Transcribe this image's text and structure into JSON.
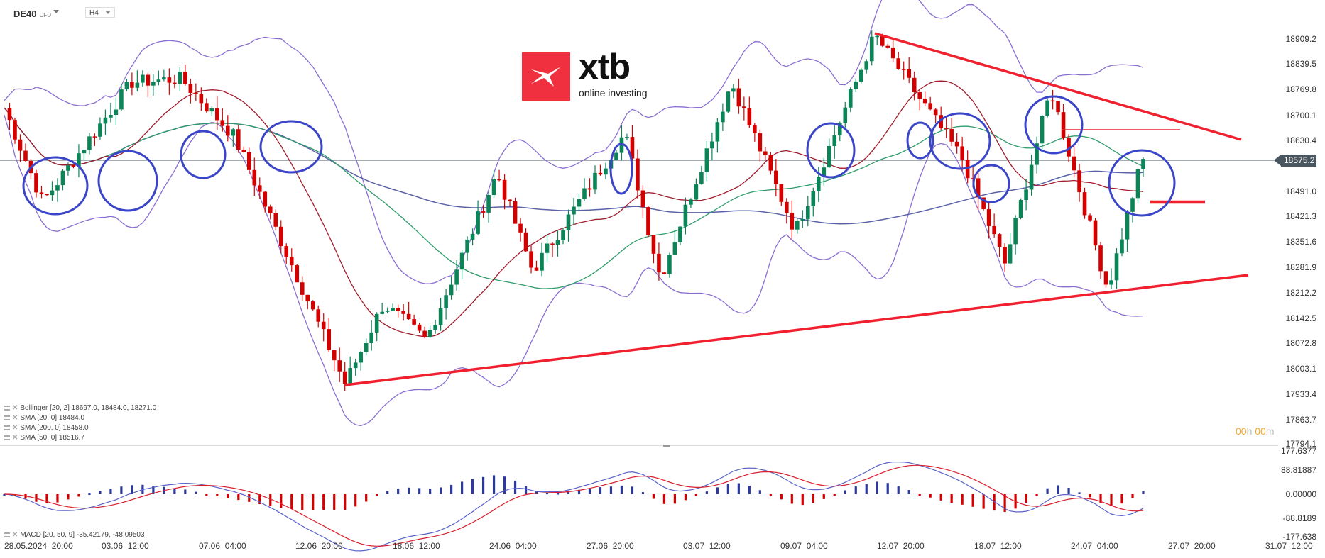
{
  "header": {
    "symbol": "DE40",
    "instrument_type": "CFD",
    "timeframe": "H4"
  },
  "logo": {
    "brand": "xtb",
    "tagline": "online investing",
    "brand_color": "#f0303f"
  },
  "price_axis": {
    "labels": [
      "18909.2",
      "18839.5",
      "18769.8",
      "18700.1",
      "18630.4",
      "18491.0",
      "18421.3",
      "18351.6",
      "18281.9",
      "18212.2",
      "18142.5",
      "18072.8",
      "18003.1",
      "17933.4",
      "17863.7",
      "17794.1"
    ],
    "current_price": "18575.2"
  },
  "macd_axis": {
    "labels": [
      "177.6377",
      "88.81887",
      "0.00000",
      "-88.8189",
      "-177.638"
    ]
  },
  "time_axis": {
    "labels": [
      "28.05.2024  20:00",
      "03.06  12:00",
      "07.06  04:00",
      "12.06  20:00",
      "18.06  12:00",
      "24.06  04:00",
      "27.06  20:00",
      "03.07  12:00",
      "09.07  04:00",
      "12.07  20:00",
      "18.07  12:00",
      "24.07  04:00",
      "27.07  20:00",
      "31.07  12:00"
    ]
  },
  "indicators": {
    "items": [
      {
        "label": "Bollinger  [20, 2] 18697.0,  18484.0,  18271.0"
      },
      {
        "label": "SMA [20, 0] 18484.0"
      },
      {
        "label": "SMA [200, 0] 18458.0"
      },
      {
        "label": "SMA [50, 0] 18516.7"
      }
    ],
    "macd": {
      "label": "MACD [20, 50, 9] -35.42179,  -48.09503"
    }
  },
  "timer": {
    "hours": "00",
    "h": "h",
    "minutes": "00",
    "m": "m"
  },
  "colors": {
    "bull": "#0b8457",
    "bear": "#d40000",
    "bollinger": "#8a6fd1",
    "sma20": "#a01c2c",
    "sma50": "#2e9c6a",
    "sma200": "#5a62a8",
    "annotation_circle": "#3b45c8",
    "trendline": "#f0202e",
    "macd_pos": "#2c3a9e",
    "macd_neg": "#d40000"
  },
  "chart_data": {
    "type": "candlestick",
    "title": "DE40 CFD H4",
    "xlabel": "",
    "ylabel": "",
    "ylim": [
      17794.1,
      18909.2
    ],
    "x_range": [
      "28.05.2024 20:00",
      "31.07 12:00"
    ],
    "current_price": 18575.2,
    "indicators": {
      "bollinger_20_2": {
        "upper": 18697.0,
        "middle": 18484.0,
        "lower": 18271.0
      },
      "sma_20": 18484.0,
      "sma_200": 18458.0,
      "sma_50": 18516.7,
      "macd_20_50_9": {
        "macd": -35.42179,
        "signal": -48.09503,
        "ylim": [
          -177.638,
          177.6377
        ]
      }
    },
    "approx_swing_points": [
      {
        "time": "28.05 20:00",
        "price": 18720
      },
      {
        "time": "31.05",
        "price": 18460
      },
      {
        "time": "05.06",
        "price": 18790
      },
      {
        "time": "07.06 04:00",
        "price": 18800
      },
      {
        "time": "10.06",
        "price": 18640
      },
      {
        "time": "14.06",
        "price": 17960
      },
      {
        "time": "17.06",
        "price": 18180
      },
      {
        "time": "19.06",
        "price": 18080
      },
      {
        "time": "24.06",
        "price": 18540
      },
      {
        "time": "26.06",
        "price": 18270
      },
      {
        "time": "27.06 20:00",
        "price": 18650
      },
      {
        "time": "01.07",
        "price": 18250
      },
      {
        "time": "05.07",
        "price": 18790
      },
      {
        "time": "08.07",
        "price": 18380
      },
      {
        "time": "12.07 20:00",
        "price": 18920
      },
      {
        "time": "17.07",
        "price": 18580
      },
      {
        "time": "19.07",
        "price": 18290
      },
      {
        "time": "22.07",
        "price": 18770
      },
      {
        "time": "25.07",
        "price": 18220
      },
      {
        "time": "26.07",
        "price": 18575
      }
    ],
    "annotations": {
      "descending_trendline": {
        "from": {
          "time": "12.07 20:00",
          "price": 18910
        },
        "to": {
          "time": "28.07",
          "price": 18630
        }
      },
      "ascending_trendline": {
        "from": {
          "time": "14.06",
          "price": 17960
        },
        "to": {
          "time": "28.07",
          "price": 18255
        }
      },
      "horizontal_resistance": 18660,
      "horizontal_marker": 18470,
      "circles": 12
    },
    "legend": [
      "Bollinger [20,2]",
      "SMA [20,0]",
      "SMA [200,0]",
      "SMA [50,0]",
      "MACD [20,50,9]"
    ],
    "grid": false
  }
}
